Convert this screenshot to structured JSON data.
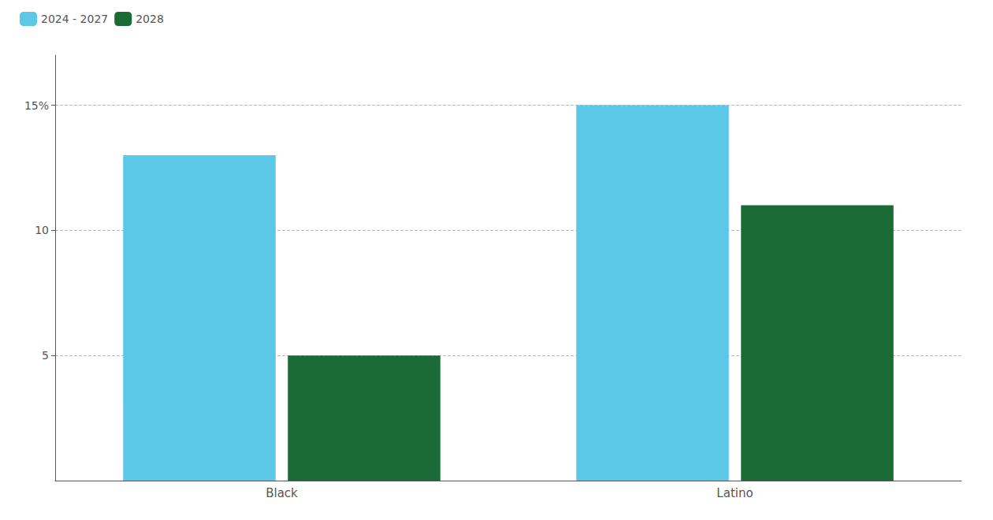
{
  "chart_data": {
    "type": "bar",
    "categories": [
      "Black",
      "Latino"
    ],
    "series": [
      {
        "name": "2024 - 2027",
        "color": "#5BC8E8",
        "values": [
          13,
          15
        ]
      },
      {
        "name": "2028",
        "color": "#1A6B35",
        "values": [
          5,
          11
        ]
      }
    ],
    "ylim": [
      0,
      17
    ],
    "yticks": [
      5,
      10,
      {
        "value": 15,
        "label": "15%"
      }
    ],
    "grid": true,
    "legend": "upper left"
  }
}
